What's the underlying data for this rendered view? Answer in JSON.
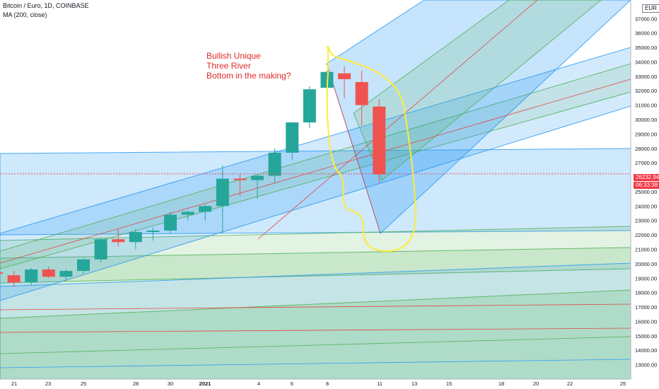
{
  "header": {
    "title": "Bitcoin / Euro, 1D, COINBASE",
    "indicator": "MA (200, close)"
  },
  "annotation": {
    "lines": [
      "Bullish Unique",
      "Three River",
      "Bottom in the making?"
    ],
    "color": "#e02b2b"
  },
  "currency_label": "EUR",
  "last_price_label": "26232.94",
  "countdown_label": "06:33:38",
  "colors": {
    "up": "#26a69a",
    "down": "#ef5350",
    "channel_blue": "#2196f3",
    "channel_green": "#4caf50",
    "median_red": "#e53935",
    "highlight": "#ffeb3b"
  },
  "chart_data": {
    "type": "candlestick",
    "title": "Bitcoin / Euro, 1D, COINBASE",
    "ylim": [
      12300,
      38300
    ],
    "y_ticks": [
      13000,
      14000,
      15000,
      16000,
      17000,
      18000,
      19000,
      20000,
      21000,
      22000,
      23000,
      24000,
      25000,
      26000,
      27000,
      28000,
      29000,
      30000,
      31000,
      32000,
      33000,
      34000,
      35000,
      36000,
      37000
    ],
    "x_ticks": [
      "21",
      "23",
      "25",
      "28",
      "30",
      "2021",
      "4",
      "6",
      "8",
      "11",
      "13",
      "15",
      "18",
      "20",
      "22",
      "25"
    ],
    "candles": [
      {
        "o": 19400,
        "h": 19700,
        "l": 19000,
        "c": 19300
      },
      {
        "o": 19200,
        "h": 19500,
        "l": 18400,
        "c": 18700
      },
      {
        "o": 18700,
        "h": 19700,
        "l": 18500,
        "c": 19600
      },
      {
        "o": 19600,
        "h": 19800,
        "l": 19000,
        "c": 19100
      },
      {
        "o": 19100,
        "h": 19600,
        "l": 18800,
        "c": 19500
      },
      {
        "o": 19500,
        "h": 20400,
        "l": 19300,
        "c": 20300
      },
      {
        "o": 20300,
        "h": 21800,
        "l": 20100,
        "c": 21700
      },
      {
        "o": 21700,
        "h": 22400,
        "l": 21200,
        "c": 21500
      },
      {
        "o": 21500,
        "h": 22400,
        "l": 21000,
        "c": 22200
      },
      {
        "o": 22200,
        "h": 22500,
        "l": 21600,
        "c": 22300
      },
      {
        "o": 22300,
        "h": 23600,
        "l": 22100,
        "c": 23400
      },
      {
        "o": 23400,
        "h": 23700,
        "l": 23000,
        "c": 23600
      },
      {
        "o": 23600,
        "h": 24100,
        "l": 23000,
        "c": 24000
      },
      {
        "o": 24000,
        "h": 26800,
        "l": 22100,
        "c": 25900
      },
      {
        "o": 25900,
        "h": 26200,
        "l": 24700,
        "c": 25800
      },
      {
        "o": 25800,
        "h": 26200,
        "l": 24500,
        "c": 26100
      },
      {
        "o": 26100,
        "h": 28000,
        "l": 25600,
        "c": 27700
      },
      {
        "o": 27700,
        "h": 29800,
        "l": 27200,
        "c": 29800
      },
      {
        "o": 29800,
        "h": 32300,
        "l": 29400,
        "c": 32100
      },
      {
        "o": 32200,
        "h": 33400,
        "l": 31200,
        "c": 33300
      },
      {
        "o": 33200,
        "h": 33700,
        "l": 31500,
        "c": 32800
      },
      {
        "o": 32600,
        "h": 33400,
        "l": 29600,
        "c": 31000
      },
      {
        "o": 30900,
        "h": 31400,
        "l": 25600,
        "c": 26200
      }
    ],
    "last_price": 26232.94
  }
}
